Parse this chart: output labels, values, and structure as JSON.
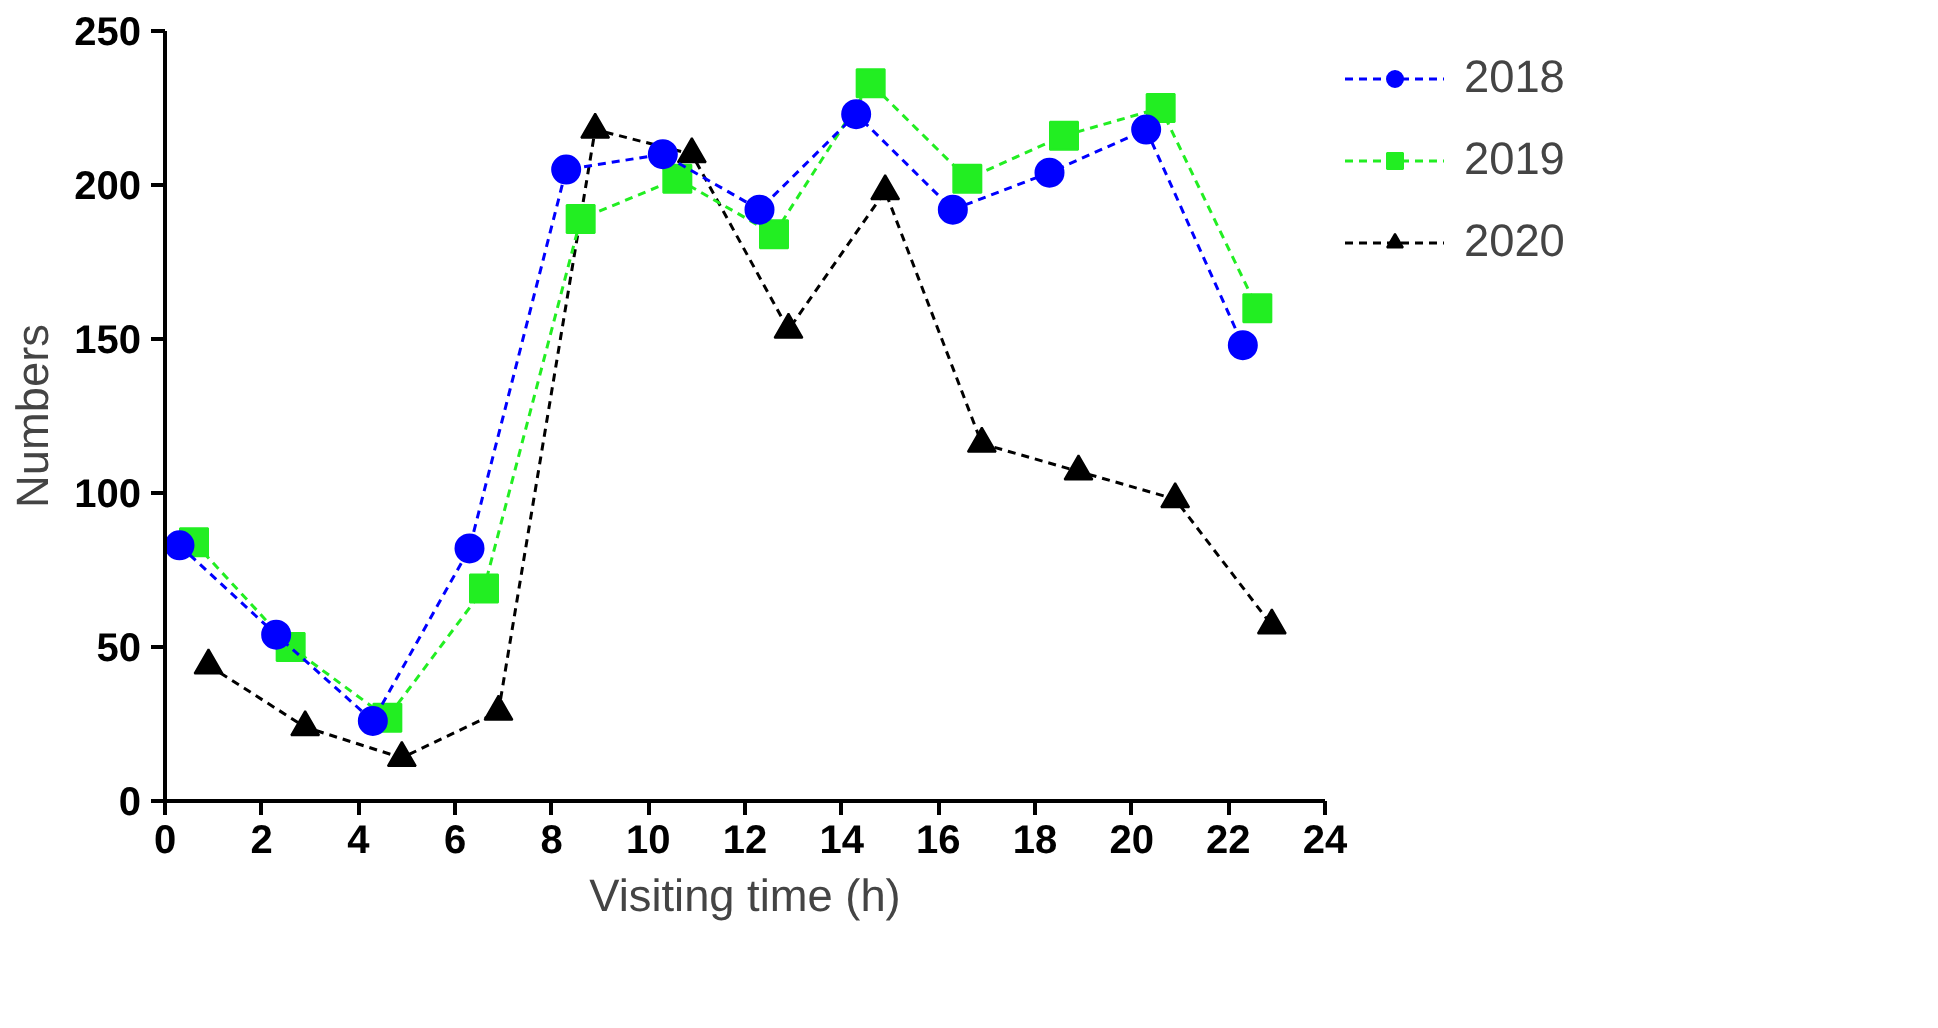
{
  "chart_data": {
    "type": "line",
    "xlabel": "Visiting time (h)",
    "ylabel": "Numbers",
    "xlim": [
      0,
      24
    ],
    "xticks": [
      0,
      2,
      4,
      6,
      8,
      10,
      12,
      14,
      16,
      18,
      20,
      22,
      24
    ],
    "ylim": [
      0,
      250
    ],
    "yticks": [
      0,
      50,
      100,
      150,
      200,
      250
    ],
    "grid": false,
    "legend": "top right",
    "line_style": "dashed",
    "series": [
      {
        "name": "2018",
        "color": "#0000ff",
        "marker": "circle",
        "x": [
          0.3,
          2.3,
          4.3,
          6.3,
          8.3,
          10.3,
          12.3,
          14.3,
          16.3,
          18.3,
          20.3,
          22.3
        ],
        "values": [
          83,
          54,
          26,
          82,
          205,
          210,
          192,
          223,
          192,
          204,
          218,
          148
        ]
      },
      {
        "name": "2019",
        "color": "#22ee22",
        "marker": "square",
        "x": [
          0.6,
          2.6,
          4.6,
          6.6,
          8.6,
          10.6,
          12.6,
          14.6,
          16.6,
          18.6,
          20.6,
          22.6
        ],
        "values": [
          84,
          50,
          27,
          69,
          189,
          202,
          184,
          233,
          202,
          216,
          225,
          160
        ]
      },
      {
        "name": "2020",
        "color": "#000000",
        "marker": "triangle",
        "x": [
          0.9,
          2.9,
          4.9,
          6.9,
          8.9,
          10.9,
          12.9,
          14.9,
          16.9,
          18.9,
          20.9,
          22.9
        ],
        "values": [
          44,
          24,
          14,
          29,
          218,
          210,
          153,
          198,
          116,
          107,
          98,
          57
        ]
      }
    ]
  }
}
